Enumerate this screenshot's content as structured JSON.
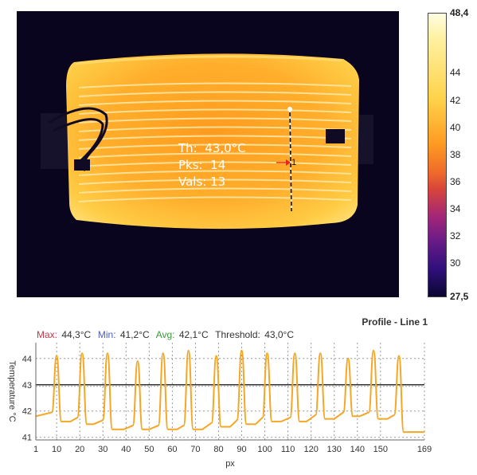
{
  "overlay": {
    "th_label": "Th:",
    "th_value": "43,0°C",
    "pks_label": "Pks:",
    "pks_value": "14",
    "vals_label": "Vals:",
    "vals_value": "13",
    "line_marker": "1"
  },
  "scale": {
    "max": "48,4",
    "min": "27,5",
    "ticks": [
      "44",
      "42",
      "40",
      "38",
      "36",
      "34",
      "32",
      "30"
    ]
  },
  "profile": {
    "title": "Profile - Line 1",
    "max_label": "Max:",
    "max_value": "44,3°C",
    "min_label": "Min:",
    "min_value": "41,2°C",
    "avg_label": "Avg:",
    "avg_value": "42,1°C",
    "threshold_label": "Threshold:",
    "threshold_value": "43,0°C"
  },
  "colors": {
    "profile_line": "#f5a623",
    "threshold_line": "#333333",
    "grid": "#999999"
  },
  "chart_data": {
    "type": "line",
    "title": "Profile - Line 1",
    "xlabel": "px",
    "ylabel": "Temperature °C",
    "xlim": [
      1,
      169
    ],
    "ylim": [
      40.9,
      44.6
    ],
    "xticks": [
      1,
      10,
      20,
      30,
      40,
      50,
      60,
      70,
      80,
      90,
      100,
      110,
      120,
      130,
      140,
      150,
      169
    ],
    "yticks": [
      41,
      42,
      43,
      44
    ],
    "grid": true,
    "threshold": 43.0,
    "peaks": [
      {
        "x": 10,
        "y": 44.1
      },
      {
        "x": 21,
        "y": 44.2
      },
      {
        "x": 32,
        "y": 44.2
      },
      {
        "x": 45,
        "y": 43.9
      },
      {
        "x": 56,
        "y": 44.2
      },
      {
        "x": 67,
        "y": 44.3
      },
      {
        "x": 79,
        "y": 44.1
      },
      {
        "x": 90,
        "y": 44.3
      },
      {
        "x": 101,
        "y": 44.2
      },
      {
        "x": 113,
        "y": 44.2
      },
      {
        "x": 124,
        "y": 44.2
      },
      {
        "x": 136,
        "y": 44.0
      },
      {
        "x": 147,
        "y": 44.3
      },
      {
        "x": 158,
        "y": 44.1
      }
    ],
    "valleys": [
      {
        "x": 1,
        "y": 41.8
      },
      {
        "x": 16,
        "y": 41.6
      },
      {
        "x": 26,
        "y": 41.5
      },
      {
        "x": 39,
        "y": 41.3
      },
      {
        "x": 50,
        "y": 41.3
      },
      {
        "x": 62,
        "y": 41.3
      },
      {
        "x": 73,
        "y": 41.3
      },
      {
        "x": 85,
        "y": 41.4
      },
      {
        "x": 96,
        "y": 41.5
      },
      {
        "x": 107,
        "y": 41.6
      },
      {
        "x": 118,
        "y": 41.6
      },
      {
        "x": 130,
        "y": 41.7
      },
      {
        "x": 141,
        "y": 41.8
      },
      {
        "x": 153,
        "y": 41.7
      },
      {
        "x": 169,
        "y": 41.2
      }
    ]
  }
}
